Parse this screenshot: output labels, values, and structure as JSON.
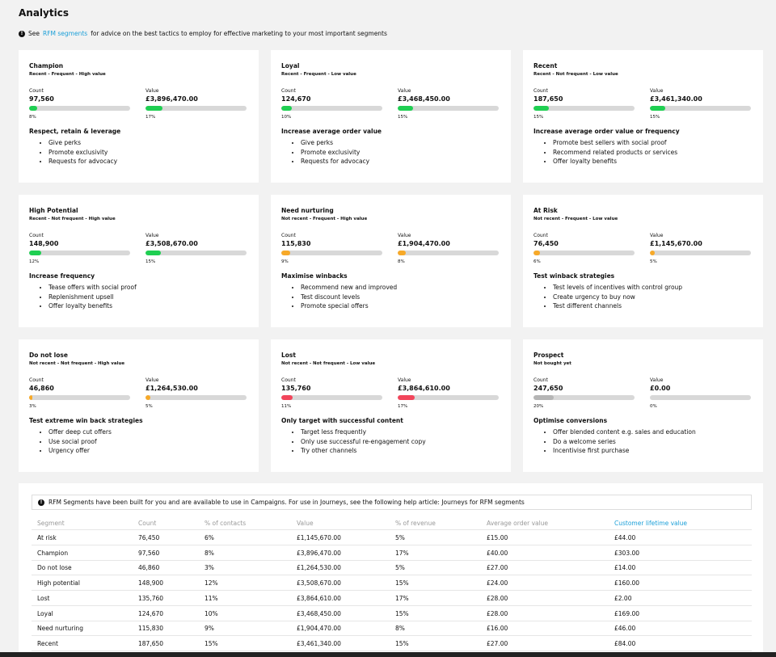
{
  "header": {
    "title": "Analytics",
    "info": {
      "before": "See",
      "link": "RFM segments",
      "after": "for advice on the best tactics to employ for effective marketing to your most important segments"
    }
  },
  "labels": {
    "count": "Count",
    "value": "Value"
  },
  "cards": [
    {
      "name": "Champion",
      "subtitle": "Recent - Frequent - High value",
      "count": "97,560",
      "value": "£3,896,470.00",
      "count_pct": "8%",
      "value_pct": "17%",
      "bar_color": "#1fcf52",
      "action": "Respect, retain & leverage",
      "tips": [
        "Give perks",
        "Promote exclusivity",
        "Requests for advocacy"
      ]
    },
    {
      "name": "Loyal",
      "subtitle": "Recent - Frequent - Low value",
      "count": "124,670",
      "value": "£3,468,450.00",
      "count_pct": "10%",
      "value_pct": "15%",
      "bar_color": "#1fcf52",
      "action": "Increase average order value",
      "tips": [
        "Give perks",
        "Promote exclusivity",
        "Requests for advocacy"
      ]
    },
    {
      "name": "Recent",
      "subtitle": "Recent - Not frequent - Low value",
      "count": "187,650",
      "value": "£3,461,340.00",
      "count_pct": "15%",
      "value_pct": "15%",
      "bar_color": "#1fcf52",
      "action": "Increase average order value or frequency",
      "tips": [
        "Promote best sellers with social proof",
        "Recommend related products or services",
        "Offer loyalty benefits"
      ]
    },
    {
      "name": "High Potential",
      "subtitle": "Recent - Not frequent - High value",
      "count": "148,900",
      "value": "£3,508,670.00",
      "count_pct": "12%",
      "value_pct": "15%",
      "bar_color": "#1fcf52",
      "action": "Increase frequency",
      "tips": [
        "Tease offers with social proof",
        "Replenishment upsell",
        "Offer loyalty benefits"
      ]
    },
    {
      "name": "Need nurturing",
      "subtitle": "Not recent - Frequent - High value",
      "count": "115,830",
      "value": "£1,904,470.00",
      "count_pct": "9%",
      "value_pct": "8%",
      "bar_color": "#f7a928",
      "action": "Maximise winbacks",
      "tips": [
        "Recommend new and improved",
        "Test discount levels",
        "Promote special offers"
      ]
    },
    {
      "name": "At Risk",
      "subtitle": "Not recent - Frequent - Low value",
      "count": "76,450",
      "value": "£1,145,670.00",
      "count_pct": "6%",
      "value_pct": "5%",
      "bar_color": "#f7a928",
      "action": "Test winback strategies",
      "tips": [
        "Test levels of incentives with control group",
        "Create urgency to buy now",
        "Test different channels"
      ]
    },
    {
      "name": "Do not lose",
      "subtitle": "Not recent - Not frequent - High value",
      "count": "46,860",
      "value": "£1,264,530.00",
      "count_pct": "3%",
      "value_pct": "5%",
      "bar_color": "#f7a928",
      "action": "Test extreme win back strategies",
      "tips": [
        "Offer deep cut offers",
        "Use social proof",
        "Urgency offer"
      ]
    },
    {
      "name": "Lost",
      "subtitle": "Not recent - Not frequent - Low value",
      "count": "135,760",
      "value": "£3,864,610.00",
      "count_pct": "11%",
      "value_pct": "17%",
      "bar_color": "#f2455b",
      "action": "Only target with successful content",
      "tips": [
        "Target less frequently",
        "Only use successful re-engagement copy",
        "Try other channels"
      ]
    },
    {
      "name": "Prospect",
      "subtitle": "Not bought yet",
      "count": "247,650",
      "value": "£0.00",
      "count_pct": "20%",
      "value_pct": "0%",
      "bar_color": "#b5b5b5",
      "action": "Optimise conversions",
      "tips": [
        "Offer blended content e.g. sales and education",
        "Do a welcome series",
        "Incentivise first purchase"
      ]
    }
  ],
  "table": {
    "info": "RFM Segments have been built for you and are available to use in Campaigns. For use in Journeys, see the following help article: Journeys for RFM segments",
    "headers": [
      "Segment",
      "Count",
      "% of contacts",
      "Value",
      "% of revenue",
      "Average order value",
      "Customer lifetime value"
    ],
    "rows": [
      [
        "At risk",
        "76,450",
        "6%",
        "£1,145,670.00",
        "5%",
        "£15.00",
        "£44.00"
      ],
      [
        "Champion",
        "97,560",
        "8%",
        "£3,896,470.00",
        "17%",
        "£40.00",
        "£303.00"
      ],
      [
        "Do not lose",
        "46,860",
        "3%",
        "£1,264,530.00",
        "5%",
        "£27.00",
        "£14.00"
      ],
      [
        "High potential",
        "148,900",
        "12%",
        "£3,508,670.00",
        "15%",
        "£24.00",
        "£160.00"
      ],
      [
        "Lost",
        "135,760",
        "11%",
        "£3,864,610.00",
        "17%",
        "£28.00",
        "£2.00"
      ],
      [
        "Loyal",
        "124,670",
        "10%",
        "£3,468,450.00",
        "15%",
        "£28.00",
        "£169.00"
      ],
      [
        "Need nurturing",
        "115,830",
        "9%",
        "£1,904,470.00",
        "8%",
        "£16.00",
        "£46.00"
      ],
      [
        "Recent",
        "187,650",
        "15%",
        "£3,461,340.00",
        "15%",
        "£27.00",
        "£84.00"
      ]
    ]
  }
}
